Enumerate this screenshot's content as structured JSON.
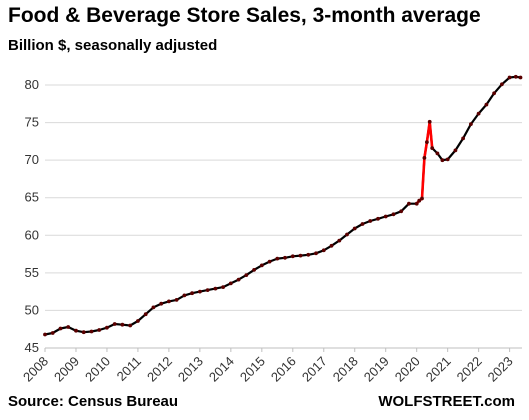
{
  "header": {
    "title": "Food & Beverage Store Sales, 3-month average",
    "subtitle": "Billion $, seasonally adjusted"
  },
  "footer": {
    "source": "Source: Census Bureau",
    "brand": "WOLFSTREET.com"
  },
  "colors": {
    "line": "#000000",
    "highlight": "#ff0000",
    "marker": "#5a0000",
    "grid": "#d9d9d9"
  },
  "chart_data": {
    "type": "line",
    "title": "Food & Beverage Store Sales, 3-month average",
    "subtitle": "Billion $, seasonally adjusted",
    "xlabel": "",
    "ylabel": "",
    "ylim": [
      45,
      82
    ],
    "xlim": [
      2008.0,
      2023.4
    ],
    "grid": "horizontal",
    "yticks": [
      45,
      50,
      55,
      60,
      65,
      70,
      75,
      80
    ],
    "xticks": [
      "2008",
      "2009",
      "2010",
      "2011",
      "2012",
      "2013",
      "2014",
      "2015",
      "2016",
      "2017",
      "2018",
      "2019",
      "2020",
      "2021",
      "2022",
      "2023"
    ],
    "highlight_range": [
      "2020.0",
      "2020.5"
    ],
    "series": [
      {
        "x": [
          2008.0,
          2008.25,
          2008.5,
          2008.75,
          2009.0,
          2009.25,
          2009.5,
          2009.75,
          2010.0,
          2010.25,
          2010.5,
          2010.75,
          2011.0,
          2011.25,
          2011.5,
          2011.75,
          2012.0,
          2012.25,
          2012.5,
          2012.75,
          2013.0,
          2013.25,
          2013.5,
          2013.75,
          2014.0,
          2014.25,
          2014.5,
          2014.75,
          2015.0,
          2015.25,
          2015.5,
          2015.75,
          2016.0,
          2016.25,
          2016.5,
          2016.75,
          2017.0,
          2017.25,
          2017.5,
          2017.75,
          2018.0,
          2018.25,
          2018.5,
          2018.75,
          2019.0,
          2019.25,
          2019.5,
          2019.75,
          2020.0,
          2020.08,
          2020.17,
          2020.25,
          2020.33,
          2020.42,
          2020.5,
          2020.67,
          2020.83,
          2021.0,
          2021.25,
          2021.5,
          2021.75,
          2022.0,
          2022.25,
          2022.5,
          2022.75,
          2023.0,
          2023.2,
          2023.35
        ],
        "values": [
          46.8,
          47.0,
          47.6,
          47.8,
          47.3,
          47.1,
          47.2,
          47.4,
          47.7,
          48.2,
          48.1,
          48.0,
          48.6,
          49.5,
          50.4,
          50.9,
          51.2,
          51.4,
          52.0,
          52.3,
          52.5,
          52.7,
          52.9,
          53.1,
          53.6,
          54.1,
          54.7,
          55.4,
          56.0,
          56.5,
          56.9,
          57.0,
          57.2,
          57.3,
          57.4,
          57.6,
          58.0,
          58.6,
          59.3,
          60.1,
          60.9,
          61.5,
          61.9,
          62.2,
          62.5,
          62.8,
          63.2,
          64.2,
          64.2,
          64.6,
          64.9,
          70.3,
          72.4,
          75.1,
          71.6,
          70.9,
          70.0,
          70.1,
          71.3,
          72.9,
          74.8,
          76.2,
          77.4,
          78.9,
          80.1,
          81.0,
          81.1,
          81.0
        ]
      }
    ]
  }
}
